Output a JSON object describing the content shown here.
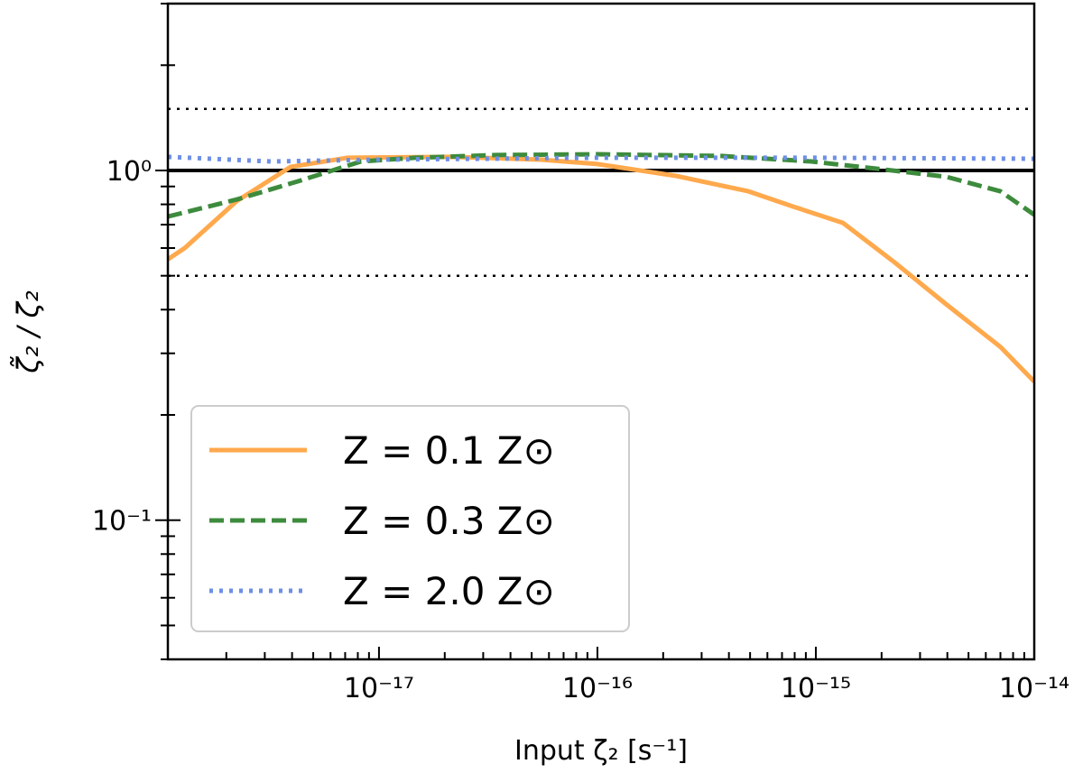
{
  "chart_data": {
    "type": "line",
    "title": "",
    "xlabel": "Input ζ₂ [s⁻¹]",
    "ylabel": "ζ̃₂ / ζ₂",
    "xscale": "log",
    "yscale": "log",
    "xlim": [
      1.08e-18,
      1e-14
    ],
    "ylim": [
      0.04,
      3.0
    ],
    "grid": false,
    "x_ticks": [
      {
        "value": 1e-17,
        "label": "10⁻¹⁷"
      },
      {
        "value": 1e-16,
        "label": "10⁻¹⁶"
      },
      {
        "value": 1e-15,
        "label": "10⁻¹⁵"
      },
      {
        "value": 1e-14,
        "label": "10⁻¹⁴"
      }
    ],
    "y_ticks": [
      {
        "value": 1,
        "label": "10⁰"
      },
      {
        "value": 0.1,
        "label": "10⁻¹"
      }
    ],
    "reference_lines": [
      {
        "y": 1.0,
        "style": "solid",
        "color": "#000000"
      },
      {
        "y": 1.5,
        "style": "dotted",
        "color": "#000000"
      },
      {
        "y": 0.5,
        "style": "dotted",
        "color": "#000000"
      }
    ],
    "legend_position": "lower-left",
    "series": [
      {
        "name": "Z = 0.1 Z⊙",
        "color": "#FFA94D",
        "style": "solid",
        "x": [
          1.08e-18,
          1.29e-18,
          2.23e-18,
          3.94e-18,
          7.18e-18,
          2.14e-17,
          5.52e-17,
          1e-16,
          2.29e-16,
          4.91e-16,
          7.89e-16,
          1.33e-15,
          2.31e-15,
          3.96e-15,
          7e-15,
          1e-14
        ],
        "y": [
          0.557,
          0.6,
          0.817,
          1.024,
          1.087,
          1.094,
          1.074,
          1.043,
          0.965,
          0.872,
          0.788,
          0.708,
          0.544,
          0.414,
          0.313,
          0.249
        ]
      },
      {
        "name": "Z = 0.3 Z⊙",
        "color": "#3D8B3D",
        "style": "dashed",
        "x": [
          1.08e-18,
          2.23e-18,
          4.26e-18,
          8.27e-18,
          1.46e-17,
          3.44e-17,
          1e-16,
          3.69e-16,
          9.53e-16,
          2.24e-15,
          3.96e-15,
          7e-15,
          1e-14
        ],
        "y": [
          0.738,
          0.826,
          0.931,
          1.061,
          1.087,
          1.107,
          1.113,
          1.1,
          1.061,
          1.0,
          0.959,
          0.872,
          0.747
        ]
      },
      {
        "name": "Z = 2.0 Z⊙",
        "color": "#6D8FE6",
        "style": "dotted",
        "x": [
          1.08e-18,
          3.2e-18,
          1e-17,
          1e-16,
          1e-15,
          1e-14
        ],
        "y": [
          1.094,
          1.061,
          1.074,
          1.087,
          1.087,
          1.08
        ]
      }
    ]
  }
}
